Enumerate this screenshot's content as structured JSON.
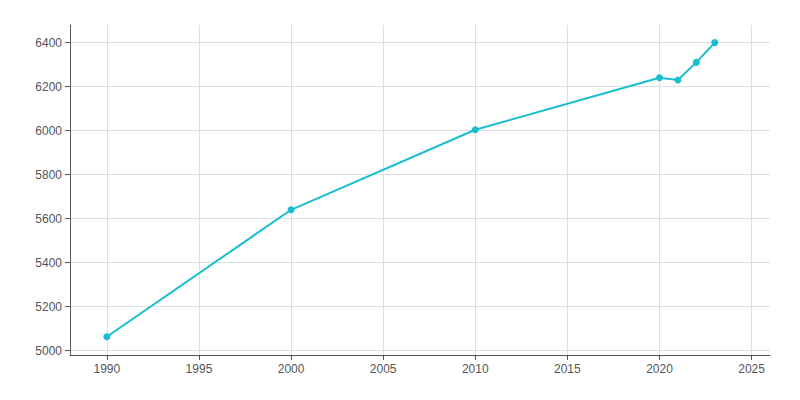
{
  "chart_data": {
    "type": "line",
    "x": [
      1990,
      2000,
      2010,
      2020,
      2021,
      2022,
      2023
    ],
    "values": [
      5063,
      5640,
      6004,
      6240,
      6230,
      6310,
      6400
    ],
    "color": "#17BECF",
    "marker": "circle",
    "xlim": [
      1988,
      2026
    ],
    "ylim": [
      4980,
      6480
    ],
    "xticks": [
      1990,
      1995,
      2000,
      2005,
      2010,
      2015,
      2020,
      2025
    ],
    "yticks": [
      5000,
      5200,
      5400,
      5600,
      5800,
      6000,
      6200,
      6400
    ],
    "grid": true
  }
}
